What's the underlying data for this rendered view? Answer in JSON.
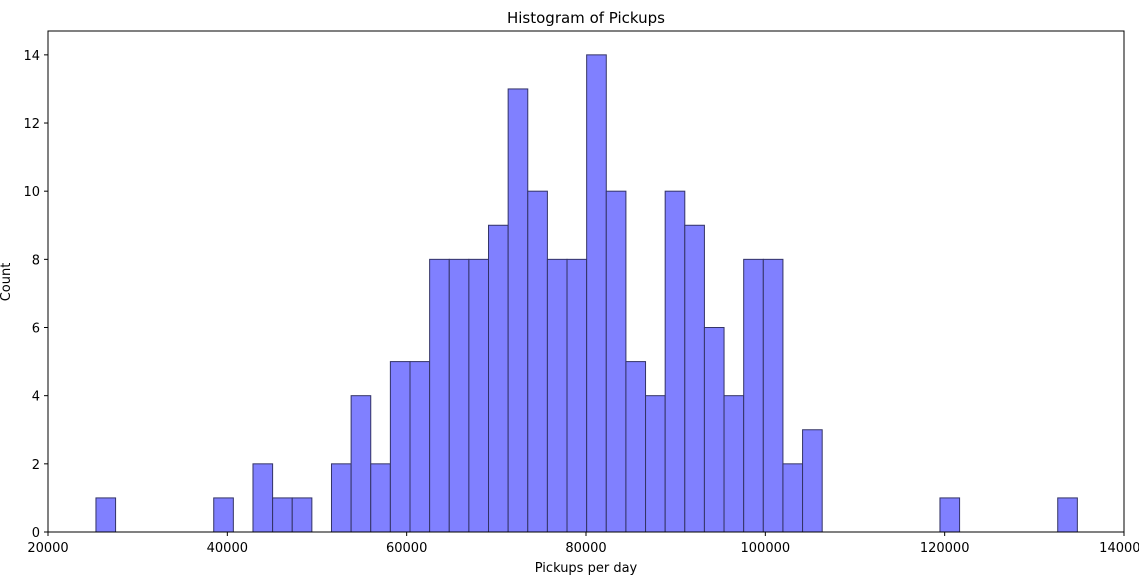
{
  "chart_data": {
    "type": "bar",
    "title": "Histogram of Pickups",
    "xlabel": "Pickups per day",
    "ylabel": "Count",
    "bin_width": 2189,
    "bins": [
      {
        "x0": 25348,
        "value": 1
      },
      {
        "x0": 38482,
        "value": 1
      },
      {
        "x0": 42860,
        "value": 2
      },
      {
        "x0": 45049,
        "value": 1
      },
      {
        "x0": 47238,
        "value": 1
      },
      {
        "x0": 51616,
        "value": 2
      },
      {
        "x0": 53805,
        "value": 4
      },
      {
        "x0": 55994,
        "value": 2
      },
      {
        "x0": 58183,
        "value": 5
      },
      {
        "x0": 60372,
        "value": 5
      },
      {
        "x0": 62561,
        "value": 8
      },
      {
        "x0": 64750,
        "value": 8
      },
      {
        "x0": 66939,
        "value": 8
      },
      {
        "x0": 69128,
        "value": 9
      },
      {
        "x0": 71317,
        "value": 13
      },
      {
        "x0": 73506,
        "value": 10
      },
      {
        "x0": 75695,
        "value": 8
      },
      {
        "x0": 77884,
        "value": 8
      },
      {
        "x0": 80073,
        "value": 14
      },
      {
        "x0": 82262,
        "value": 10
      },
      {
        "x0": 84451,
        "value": 5
      },
      {
        "x0": 86640,
        "value": 4
      },
      {
        "x0": 88829,
        "value": 10
      },
      {
        "x0": 91018,
        "value": 9
      },
      {
        "x0": 93207,
        "value": 6
      },
      {
        "x0": 95396,
        "value": 4
      },
      {
        "x0": 97585,
        "value": 8
      },
      {
        "x0": 99774,
        "value": 8
      },
      {
        "x0": 101963,
        "value": 2
      },
      {
        "x0": 104152,
        "value": 3
      },
      {
        "x0": 119475,
        "value": 1
      },
      {
        "x0": 132609,
        "value": 1
      }
    ],
    "xlim": [
      20000,
      140000
    ],
    "ylim": [
      0,
      14.7
    ],
    "xticks": [
      20000,
      40000,
      60000,
      80000,
      100000,
      120000,
      140000
    ],
    "xtick_labels": [
      "20000",
      "40000",
      "60000",
      "80000",
      "100000",
      "120000",
      "140000"
    ],
    "yticks": [
      0,
      2,
      4,
      6,
      8,
      10,
      12,
      14
    ],
    "ytick_labels": [
      "0",
      "2",
      "4",
      "6",
      "8",
      "10",
      "12",
      "14"
    ],
    "grid": false,
    "legend": "none",
    "colors": {
      "bar_fill": "#8080ff",
      "bar_edge": "#333366",
      "axis": "#000000"
    }
  }
}
